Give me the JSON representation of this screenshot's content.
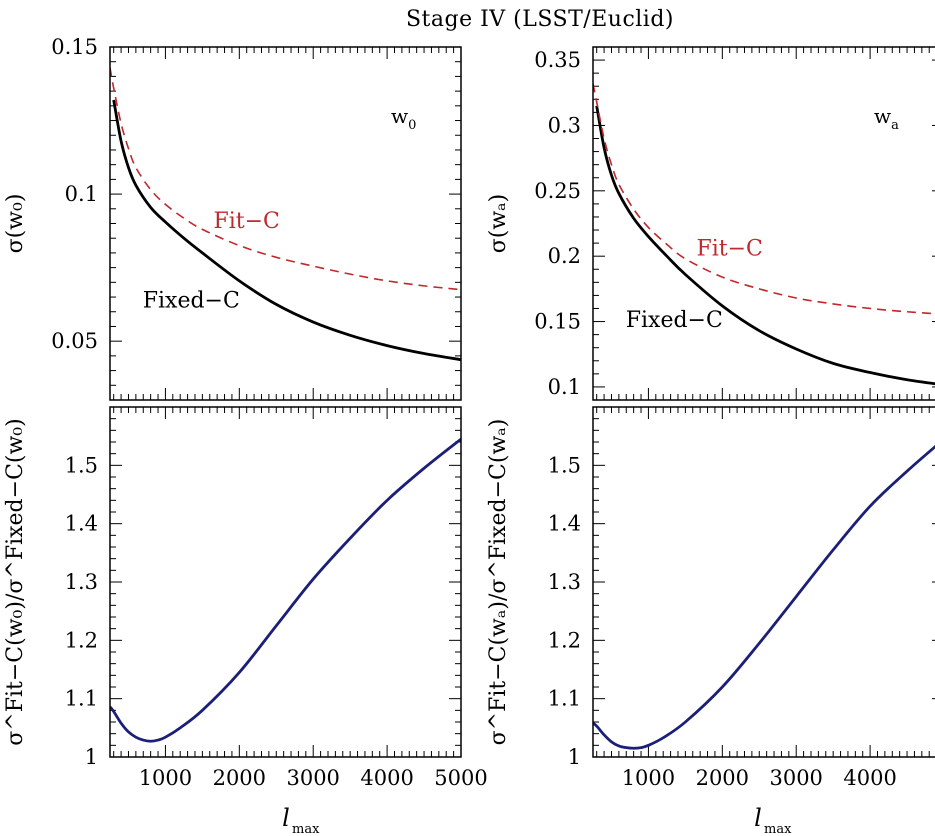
{
  "figure": {
    "title": "Stage IV (LSST/Euclid)",
    "xlabel_main": "l",
    "xlabel_sub": "max"
  },
  "colors": {
    "fixed": "#000000",
    "fit": "#c0282b",
    "ratio": "#1c1f78"
  },
  "chart_data": [
    {
      "id": "w0-sigma",
      "type": "line",
      "panel_label": "w",
      "panel_label_sub": "0",
      "ylabel": "σ(w₀)",
      "xlim": [
        250,
        5000
      ],
      "ylim": [
        0.03,
        0.15
      ],
      "yticks": [
        0.05,
        0.1,
        0.15
      ],
      "ytick_labels": [
        "0.05",
        "0.1",
        "0.15"
      ],
      "yminor": 0.005,
      "xticks": [
        1000,
        2000,
        3000,
        4000,
        5000
      ],
      "xminor": 100,
      "show_xticklabels": false,
      "annotations": [
        {
          "text": "Fit−C",
          "x": 2100,
          "y": 0.0885,
          "color_key": "fit"
        },
        {
          "text": "Fixed−C",
          "x": 1350,
          "y": 0.0615,
          "color_key": "fixed"
        }
      ],
      "series": [
        {
          "name": "Fixed−C",
          "style": "solid",
          "color_key": "fixed",
          "x": [
            300,
            400,
            500,
            600,
            800,
            1000,
            1250,
            1500,
            2000,
            2500,
            3000,
            3500,
            4000,
            4500,
            5000
          ],
          "y": [
            0.132,
            0.118,
            0.109,
            0.103,
            0.0955,
            0.0905,
            0.085,
            0.08,
            0.0705,
            0.0625,
            0.0565,
            0.052,
            0.0485,
            0.0458,
            0.0437
          ]
        },
        {
          "name": "Fit−C",
          "style": "dashed",
          "color_key": "fit",
          "x": [
            250,
            300,
            400,
            500,
            600,
            800,
            1000,
            1250,
            1500,
            2000,
            2500,
            3000,
            3500,
            4000,
            4500,
            5000
          ],
          "y": [
            0.143,
            0.136,
            0.124,
            0.1155,
            0.109,
            0.1015,
            0.0965,
            0.0918,
            0.088,
            0.0825,
            0.0785,
            0.0755,
            0.0728,
            0.0705,
            0.0688,
            0.0675
          ]
        }
      ]
    },
    {
      "id": "wa-sigma",
      "type": "line",
      "panel_label": "w",
      "panel_label_sub": "a",
      "ylabel": "σ(wₐ)",
      "xlim": [
        250,
        5000
      ],
      "ylim": [
        0.09,
        0.36
      ],
      "yticks": [
        0.1,
        0.15,
        0.2,
        0.25,
        0.3,
        0.35
      ],
      "ytick_labels": [
        "0.1",
        "0.15",
        "0.2",
        "0.25",
        "0.3",
        "0.35"
      ],
      "yminor": 0.01,
      "xticks": [
        1000,
        2000,
        3000,
        4000,
        5000
      ],
      "xminor": 100,
      "show_xticklabels": false,
      "annotations": [
        {
          "text": "Fit−C",
          "x": 2100,
          "y": 0.2005,
          "color_key": "fit"
        },
        {
          "text": "Fixed−C",
          "x": 1350,
          "y": 0.146,
          "color_key": "fixed"
        }
      ],
      "series": [
        {
          "name": "Fixed−C",
          "style": "solid",
          "color_key": "fixed",
          "x": [
            300,
            400,
            500,
            600,
            800,
            1000,
            1250,
            1500,
            2000,
            2500,
            3000,
            3500,
            4000,
            4500,
            5000
          ],
          "y": [
            0.315,
            0.283,
            0.262,
            0.248,
            0.229,
            0.215,
            0.2,
            0.186,
            0.162,
            0.143,
            0.129,
            0.118,
            0.111,
            0.1055,
            0.1015
          ]
        },
        {
          "name": "Fit−C",
          "style": "dashed",
          "color_key": "fit",
          "x": [
            250,
            300,
            400,
            500,
            600,
            800,
            1000,
            1250,
            1500,
            2000,
            2500,
            3000,
            3500,
            4000,
            4500,
            5000
          ],
          "y": [
            0.332,
            0.318,
            0.29,
            0.27,
            0.255,
            0.236,
            0.222,
            0.209,
            0.198,
            0.184,
            0.175,
            0.168,
            0.1635,
            0.16,
            0.1575,
            0.1555
          ]
        }
      ]
    },
    {
      "id": "w0-ratio",
      "type": "line",
      "ylabel": "σ^Fit−C(w₀)/σ^Fixed−C(w₀)",
      "xlim": [
        250,
        5000
      ],
      "ylim": [
        1.0,
        1.6
      ],
      "yticks": [
        1.0,
        1.1,
        1.2,
        1.3,
        1.4,
        1.5
      ],
      "ytick_labels": [
        "1",
        "1.1",
        "1.2",
        "1.3",
        "1.4",
        "1.5"
      ],
      "yminor": 0.02,
      "xticks": [
        1000,
        2000,
        3000,
        4000,
        5000
      ],
      "xtick_labels": [
        "1000",
        "2000",
        "3000",
        "4000",
        "5000"
      ],
      "xminor": 100,
      "show_xticklabels": true,
      "series": [
        {
          "name": "",
          "style": "solid",
          "color_key": "ratio",
          "x": [
            250,
            300,
            400,
            500,
            600,
            700,
            800,
            900,
            1000,
            1200,
            1500,
            2000,
            2500,
            3000,
            3500,
            4000,
            4500,
            5000
          ],
          "y": [
            1.086,
            1.078,
            1.058,
            1.043,
            1.034,
            1.029,
            1.027,
            1.029,
            1.034,
            1.05,
            1.08,
            1.145,
            1.225,
            1.305,
            1.375,
            1.44,
            1.495,
            1.545
          ]
        }
      ]
    },
    {
      "id": "wa-ratio",
      "type": "line",
      "ylabel": "σ^Fit−C(wₐ)/σ^Fixed−C(wₐ)",
      "xlim": [
        250,
        5000
      ],
      "ylim": [
        1.0,
        1.6
      ],
      "yticks": [
        1.0,
        1.1,
        1.2,
        1.3,
        1.4,
        1.5
      ],
      "ytick_labels": [
        "1",
        "1.1",
        "1.2",
        "1.3",
        "1.4",
        "1.5"
      ],
      "yminor": 0.02,
      "xticks": [
        1000,
        2000,
        3000,
        4000,
        5000
      ],
      "xtick_labels": [
        "1000",
        "2000",
        "3000",
        "4000",
        ""
      ],
      "xminor": 100,
      "show_xticklabels": true,
      "series": [
        {
          "name": "",
          "style": "solid",
          "color_key": "ratio",
          "x": [
            250,
            300,
            400,
            500,
            600,
            700,
            800,
            900,
            1000,
            1200,
            1500,
            2000,
            2500,
            3000,
            3500,
            4000,
            4500,
            5000
          ],
          "y": [
            1.058,
            1.053,
            1.038,
            1.026,
            1.019,
            1.016,
            1.015,
            1.016,
            1.02,
            1.033,
            1.06,
            1.12,
            1.195,
            1.275,
            1.355,
            1.43,
            1.49,
            1.545
          ]
        }
      ]
    }
  ]
}
